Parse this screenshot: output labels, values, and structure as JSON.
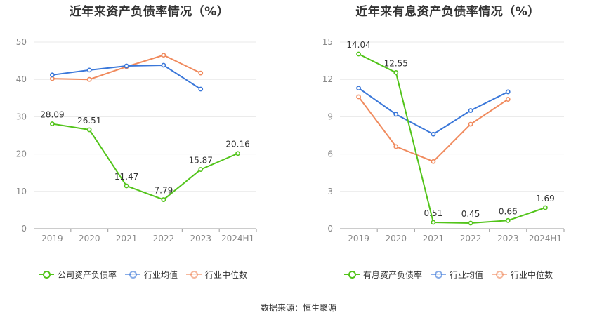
{
  "source_text": "数据来源：恒生聚源",
  "chart_data": [
    {
      "type": "line",
      "title": "近年来资产负债率情况（%）",
      "categories": [
        "2019",
        "2020",
        "2021",
        "2022",
        "2023",
        "2024H1"
      ],
      "ylim": [
        0,
        50
      ],
      "yticks": [
        0,
        10,
        20,
        30,
        40,
        50
      ],
      "grid": true,
      "legend_position": "bottom",
      "series": [
        {
          "name": "公司资产负债率",
          "color": "#52c41a",
          "values": [
            28.09,
            26.51,
            11.47,
            7.79,
            15.87,
            20.16
          ],
          "labels": [
            "28.09",
            "26.51",
            "11.47",
            "7.79",
            "15.87",
            "20.16"
          ],
          "show_labels": true
        },
        {
          "name": "行业均值",
          "color": "#3a77d9",
          "values": [
            41.2,
            42.5,
            43.6,
            43.8,
            37.4,
            null
          ],
          "show_labels": false
        },
        {
          "name": "行业中位数",
          "color": "#f08a5d",
          "values": [
            40.2,
            40.0,
            43.4,
            46.5,
            41.7,
            null
          ],
          "show_labels": false
        }
      ]
    },
    {
      "type": "line",
      "title": "近年来有息资产负债率情况（%）",
      "categories": [
        "2019",
        "2020",
        "2021",
        "2022",
        "2023",
        "2024H1"
      ],
      "ylim": [
        0,
        15
      ],
      "yticks": [
        0,
        3,
        6,
        9,
        12,
        15
      ],
      "grid": true,
      "legend_position": "bottom",
      "series": [
        {
          "name": "有息资产负债率",
          "color": "#52c41a",
          "values": [
            14.04,
            12.55,
            0.51,
            0.45,
            0.66,
            1.69
          ],
          "labels": [
            "14.04",
            "12.55",
            "0.51",
            "0.45",
            "0.66",
            "1.69"
          ],
          "show_labels": true
        },
        {
          "name": "行业均值",
          "color": "#3a77d9",
          "values": [
            11.3,
            9.2,
            7.6,
            9.5,
            11.0,
            null
          ],
          "show_labels": false
        },
        {
          "name": "行业中位数",
          "color": "#f08a5d",
          "values": [
            10.6,
            6.6,
            5.4,
            8.4,
            10.4,
            null
          ],
          "show_labels": false
        }
      ]
    }
  ]
}
